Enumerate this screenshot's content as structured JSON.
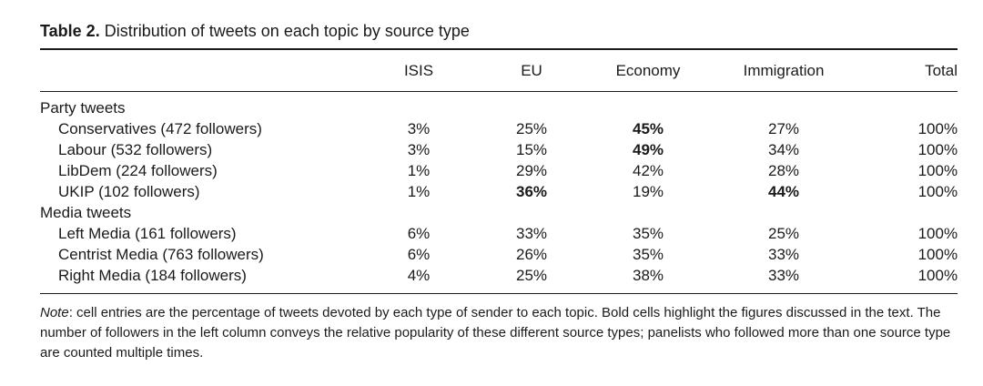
{
  "caption": {
    "label": "Table 2.",
    "title": "Distribution of tweets on each topic by source type"
  },
  "table": {
    "columns": [
      "",
      "ISIS",
      "EU",
      "Economy",
      "Immigration",
      "Total"
    ],
    "groups": [
      {
        "label": "Party tweets",
        "rows": [
          {
            "source": "Conservatives (472 followers)",
            "isis": "3%",
            "eu": "25%",
            "economy": "45%",
            "immigration": "27%",
            "total": "100%",
            "bold": [
              "economy"
            ]
          },
          {
            "source": "Labour (532 followers)",
            "isis": "3%",
            "eu": "15%",
            "economy": "49%",
            "immigration": "34%",
            "total": "100%",
            "bold": [
              "economy"
            ]
          },
          {
            "source": "LibDem (224 followers)",
            "isis": "1%",
            "eu": "29%",
            "economy": "42%",
            "immigration": "28%",
            "total": "100%",
            "bold": []
          },
          {
            "source": "UKIP (102 followers)",
            "isis": "1%",
            "eu": "36%",
            "economy": "19%",
            "immigration": "44%",
            "total": "100%",
            "bold": [
              "eu",
              "immigration"
            ]
          }
        ]
      },
      {
        "label": "Media tweets",
        "rows": [
          {
            "source": "Left Media (161 followers)",
            "isis": "6%",
            "eu": "33%",
            "economy": "35%",
            "immigration": "25%",
            "total": "100%",
            "bold": []
          },
          {
            "source": "Centrist Media (763 followers)",
            "isis": "6%",
            "eu": "26%",
            "economy": "35%",
            "immigration": "33%",
            "total": "100%",
            "bold": []
          },
          {
            "source": "Right Media (184 followers)",
            "isis": "4%",
            "eu": "25%",
            "economy": "38%",
            "immigration": "33%",
            "total": "100%",
            "bold": []
          }
        ]
      }
    ]
  },
  "note": {
    "label": "Note",
    "text": ": cell entries are the percentage of tweets devoted by each type of sender to each topic. Bold cells highlight the figures discussed in the text. The number of followers in the left column conveys the relative popularity of these different source types; panelists who followed more than one source type are counted multiple times."
  }
}
